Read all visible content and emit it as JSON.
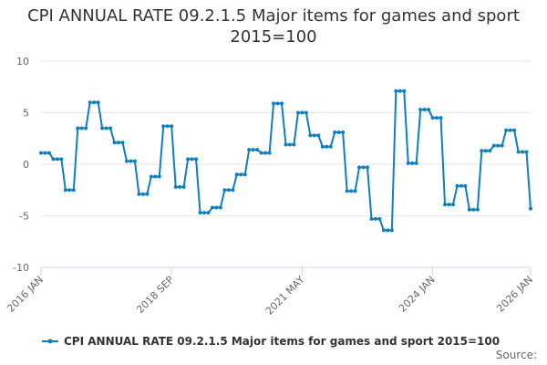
{
  "chart_data": {
    "type": "line",
    "title": "CPI ANNUAL RATE 09.2.1.5 Major items for games and sport 2015=100",
    "xlabel": "",
    "ylabel": "",
    "ylim": [
      -10,
      10
    ],
    "yticks": [
      "-10",
      "-5",
      "0",
      "5",
      "10"
    ],
    "x_tick_labels": [
      "2016 JAN",
      "2018 SEP",
      "2021 MAY",
      "2024 JAN",
      "2026 JAN"
    ],
    "x_tick_month_index": [
      0,
      32,
      64,
      96,
      120
    ],
    "grid": true,
    "legend_position": "bottom",
    "source_label": "Source:",
    "series": [
      {
        "name": "CPI ANNUAL RATE 09.2.1.5 Major items for games and sport 2015=100",
        "color": "#0f7fbf",
        "start": "2016 JAN",
        "frequency": "monthly",
        "values": [
          1.1,
          1.1,
          1.1,
          0.5,
          0.5,
          0.5,
          -2.5,
          -2.5,
          -2.5,
          3.5,
          3.5,
          3.5,
          6.0,
          6.0,
          6.0,
          3.5,
          3.5,
          3.5,
          2.1,
          2.1,
          2.1,
          0.3,
          0.3,
          0.3,
          -2.9,
          -2.9,
          -2.9,
          -1.2,
          -1.2,
          -1.2,
          3.7,
          3.7,
          3.7,
          -2.2,
          -2.2,
          -2.2,
          0.5,
          0.5,
          0.5,
          -4.7,
          -4.7,
          -4.7,
          -4.2,
          -4.2,
          -4.2,
          -2.5,
          -2.5,
          -2.5,
          -1.0,
          -1.0,
          -1.0,
          1.4,
          1.4,
          1.4,
          1.1,
          1.1,
          1.1,
          5.9,
          5.9,
          5.9,
          1.9,
          1.9,
          1.9,
          5.0,
          5.0,
          5.0,
          2.8,
          2.8,
          2.8,
          1.7,
          1.7,
          1.7,
          3.1,
          3.1,
          3.1,
          -2.6,
          -2.6,
          -2.6,
          -0.3,
          -0.3,
          -0.3,
          -5.3,
          -5.3,
          -5.3,
          -6.4,
          -6.4,
          -6.4,
          7.1,
          7.1,
          7.1,
          0.1,
          0.1,
          0.1,
          5.3,
          5.3,
          5.3,
          4.5,
          4.5,
          4.5,
          -3.9,
          -3.9,
          -3.9,
          -2.1,
          -2.1,
          -2.1,
          -4.4,
          -4.4,
          -4.4,
          1.3,
          1.3,
          1.3,
          1.8,
          1.8,
          1.8,
          3.3,
          3.3,
          3.3,
          1.2,
          1.2,
          1.2,
          -4.3
        ]
      }
    ]
  }
}
